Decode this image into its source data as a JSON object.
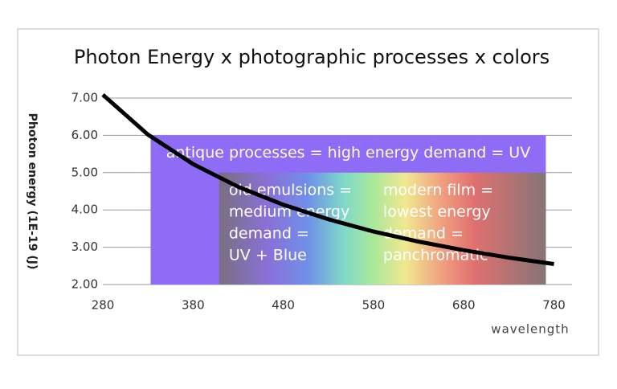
{
  "chart_data": {
    "type": "line",
    "title": "Photon Energy x photographic processes x colors",
    "x_label": "wavelength",
    "y_label": "Photon energy (1E-19 (J)",
    "x": [
      280,
      330,
      380,
      430,
      480,
      530,
      580,
      630,
      680,
      730,
      780
    ],
    "series": [
      {
        "name": "Photon energy",
        "color": "#000000",
        "values": [
          7.09,
          6.02,
          5.23,
          4.62,
          4.14,
          3.75,
          3.42,
          3.15,
          2.92,
          2.72,
          2.55
        ]
      }
    ],
    "xlim": [
      280,
      800
    ],
    "xticks": [
      280,
      380,
      480,
      580,
      680,
      780
    ],
    "ylim": [
      2,
      7
    ],
    "yticks": [
      {
        "value": 2,
        "label": "2.00"
      },
      {
        "value": 3,
        "label": "3.00"
      },
      {
        "value": 4,
        "label": "4.00"
      },
      {
        "value": 5,
        "label": "5.00"
      },
      {
        "value": 6,
        "label": "6.00"
      },
      {
        "value": 7,
        "label": "7.00"
      }
    ],
    "grid": true,
    "regions": [
      {
        "xrange": [
          333,
          771
        ],
        "yrange": [
          2,
          6
        ],
        "color": "#8f6cf5",
        "lines": [
          "antique processes = high energy demand = UV"
        ]
      },
      {
        "xrange": [
          409,
          771
        ],
        "yrange": [
          2,
          5
        ],
        "color": "spectrum",
        "lines": [
          "old emulsions =",
          "medium energy",
          "demand =",
          "UV + Blue"
        ]
      },
      {
        "xrange": [
          580,
          771
        ],
        "yrange": [
          2,
          5
        ],
        "color": "none",
        "lines": [
          "modern film =",
          "lowest energy",
          "demand =",
          "panchromatic"
        ]
      }
    ]
  }
}
